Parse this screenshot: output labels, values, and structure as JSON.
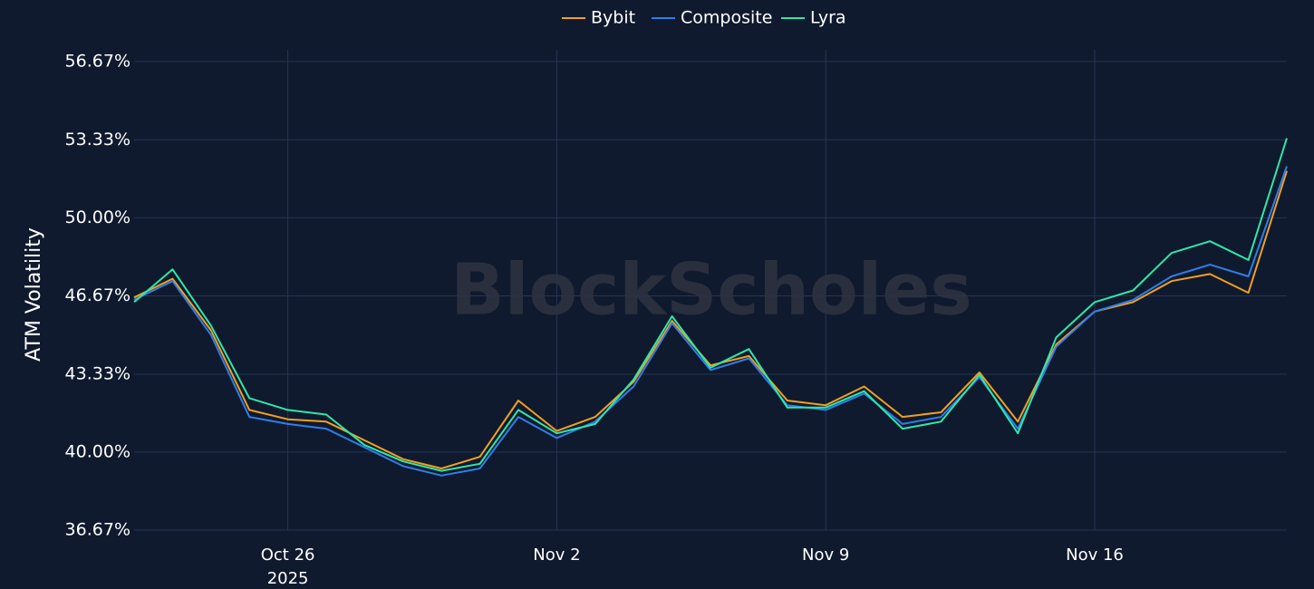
{
  "chart_data": {
    "type": "line",
    "watermark": "BlockScholes",
    "y_label": "ATM Volatility",
    "x": [
      "2025-10-22",
      "2025-10-23",
      "2025-10-24",
      "2025-10-25",
      "2025-10-26",
      "2025-10-27",
      "2025-10-28",
      "2025-10-29",
      "2025-10-30",
      "2025-10-31",
      "2025-11-01",
      "2025-11-02",
      "2025-11-03",
      "2025-11-04",
      "2025-11-05",
      "2025-11-06",
      "2025-11-07",
      "2025-11-08",
      "2025-11-09",
      "2025-11-10",
      "2025-11-11",
      "2025-11-12",
      "2025-11-13",
      "2025-11-14",
      "2025-11-15",
      "2025-11-16",
      "2025-11-17",
      "2025-11-18",
      "2025-11-19",
      "2025-11-20",
      "2025-11-21"
    ],
    "series": [
      {
        "name": "Bybit",
        "color": "#f0a020",
        "values": [
          46.6,
          47.4,
          45.2,
          41.8,
          41.4,
          41.3,
          40.5,
          39.7,
          39.3,
          39.8,
          42.2,
          40.9,
          41.5,
          43.0,
          45.6,
          43.7,
          44.1,
          42.2,
          42.0,
          42.8,
          41.5,
          41.7,
          43.4,
          41.3,
          44.6,
          46.0,
          46.4,
          47.3,
          47.6,
          46.8,
          52.0
        ]
      },
      {
        "name": "Composite",
        "color": "#2f7ee8",
        "values": [
          46.5,
          47.3,
          45.0,
          41.5,
          41.2,
          41.0,
          40.2,
          39.4,
          39.0,
          39.3,
          41.5,
          40.6,
          41.3,
          42.8,
          45.5,
          43.5,
          44.0,
          42.0,
          41.8,
          42.5,
          41.2,
          41.5,
          43.2,
          41.0,
          44.5,
          46.0,
          46.5,
          47.5,
          48.0,
          47.5,
          52.2
        ]
      },
      {
        "name": "Lyra",
        "color": "#2ee8a8",
        "values": [
          46.4,
          47.8,
          45.4,
          42.3,
          41.8,
          41.6,
          40.3,
          39.6,
          39.2,
          39.5,
          41.8,
          40.8,
          41.2,
          43.1,
          45.8,
          43.6,
          44.4,
          41.9,
          41.9,
          42.6,
          41.0,
          41.3,
          43.3,
          40.8,
          44.9,
          46.4,
          46.9,
          48.5,
          49.0,
          48.2,
          53.4
        ]
      }
    ],
    "xlim": [
      "2025-10-22",
      "2025-11-21"
    ],
    "xticks": [
      {
        "value": "2025-10-26",
        "label": "Oct 26",
        "sublabel": "2025"
      },
      {
        "value": "2025-11-02",
        "label": "Nov 2"
      },
      {
        "value": "2025-11-09",
        "label": "Nov 9"
      },
      {
        "value": "2025-11-16",
        "label": "Nov 16"
      }
    ],
    "ylim": [
      36.67,
      57.17
    ],
    "yticks": [
      {
        "value": 36.67,
        "label": "36.67%"
      },
      {
        "value": 40,
        "label": "40.00%"
      },
      {
        "value": 43.33,
        "label": "43.33%"
      },
      {
        "value": 46.67,
        "label": "46.67%"
      },
      {
        "value": 50,
        "label": "50.00%"
      },
      {
        "value": 53.33,
        "label": "53.33%"
      },
      {
        "value": 56.67,
        "label": "56.67%"
      }
    ],
    "grid": true,
    "legend": "top"
  }
}
